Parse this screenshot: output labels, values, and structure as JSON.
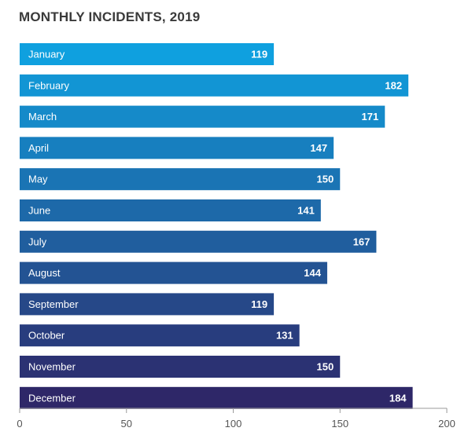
{
  "chart_data": {
    "type": "bar",
    "orientation": "horizontal",
    "title": "MONTHLY INCIDENTS, 2019",
    "categories": [
      "January",
      "February",
      "March",
      "April",
      "May",
      "June",
      "July",
      "August",
      "September",
      "October",
      "November",
      "December"
    ],
    "values": [
      119,
      182,
      171,
      147,
      150,
      141,
      167,
      144,
      119,
      131,
      150,
      184
    ],
    "xlim": [
      0,
      200
    ],
    "x_ticks": [
      0,
      50,
      100,
      150,
      200
    ],
    "grid": false,
    "legend": "none",
    "colors": {
      "bar_start": "#0fa0df",
      "bar_end": "#2e2768",
      "value_label": "#ffffff",
      "category_label": "#ffffff",
      "axis": "#9a9a9a",
      "tick_label": "#555555",
      "title": "#3a3a3a"
    }
  }
}
